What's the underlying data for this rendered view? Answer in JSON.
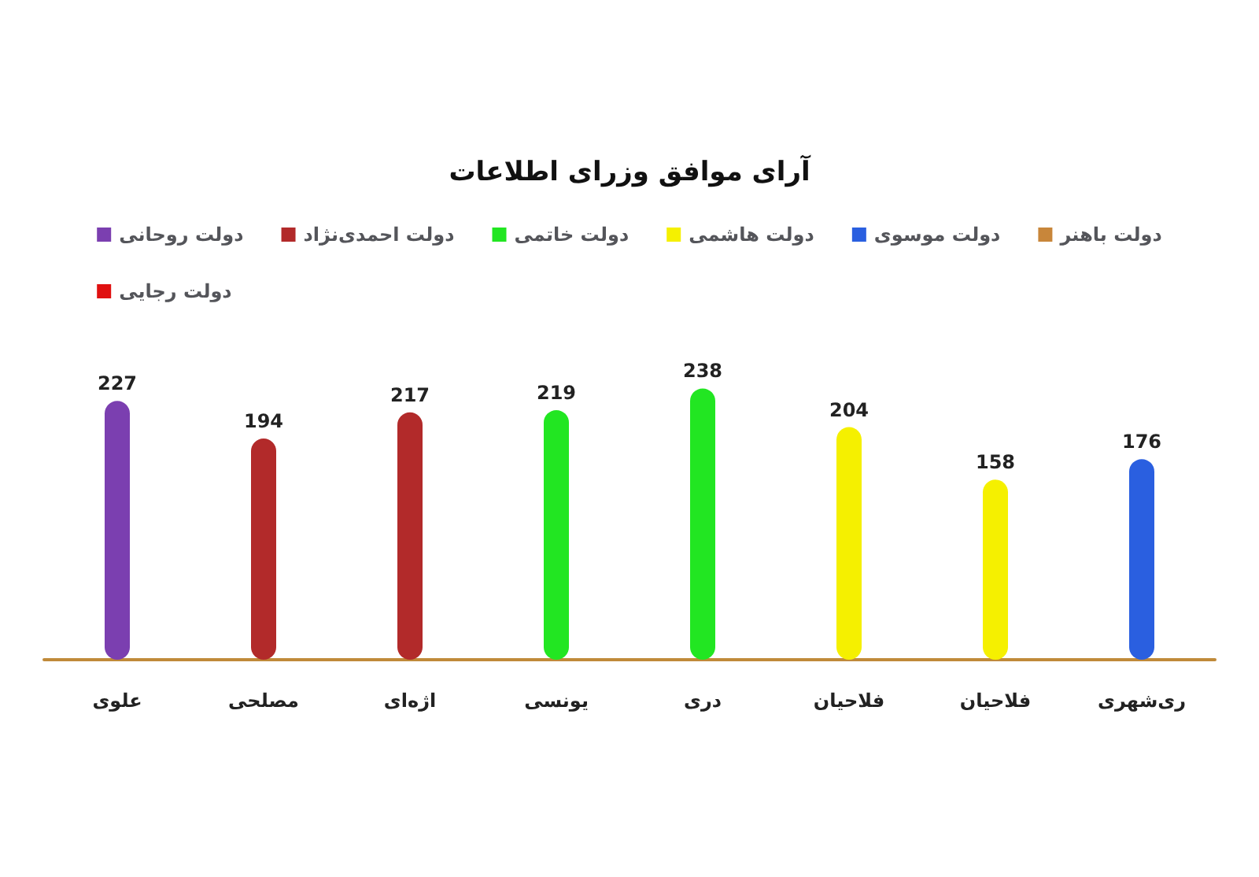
{
  "chart_data": {
    "type": "bar",
    "title": "آرای موافق وزرای اطلاعات",
    "categories": [
      "علوی",
      "مصلحی",
      "اژه‌ای",
      "یونسی",
      "دری",
      "فلاحیان",
      "فلاحیان",
      "ری‌شهری"
    ],
    "stacked": true,
    "data_labels": true,
    "legend": "top",
    "grid": false,
    "series": [
      {
        "name": "دولت روحانی",
        "color": "#7b3fb0",
        "values": [
          227,
          null,
          null,
          null,
          null,
          null,
          null,
          null
        ]
      },
      {
        "name": "دولت احمدی‌نژاد",
        "color": "#b22a2a",
        "values": [
          null,
          194,
          217,
          null,
          null,
          null,
          null,
          null
        ]
      },
      {
        "name": "دولت خاتمی",
        "color": "#22e622",
        "values": [
          null,
          null,
          null,
          219,
          238,
          null,
          null,
          null
        ]
      },
      {
        "name": "دولت هاشمی",
        "color": "#f5f000",
        "values": [
          null,
          null,
          null,
          null,
          null,
          204,
          158,
          null
        ]
      },
      {
        "name": "دولت موسوی",
        "color": "#2a5fe0",
        "values": [
          null,
          null,
          null,
          null,
          null,
          null,
          null,
          176
        ]
      },
      {
        "name": "دولت باهنر",
        "color": "#c8863a",
        "values": [
          null,
          null,
          null,
          null,
          null,
          null,
          null,
          null
        ]
      },
      {
        "name": "دولت رجایی",
        "color": "#e01010",
        "values": [
          null,
          null,
          null,
          null,
          null,
          null,
          null,
          null
        ]
      }
    ]
  }
}
